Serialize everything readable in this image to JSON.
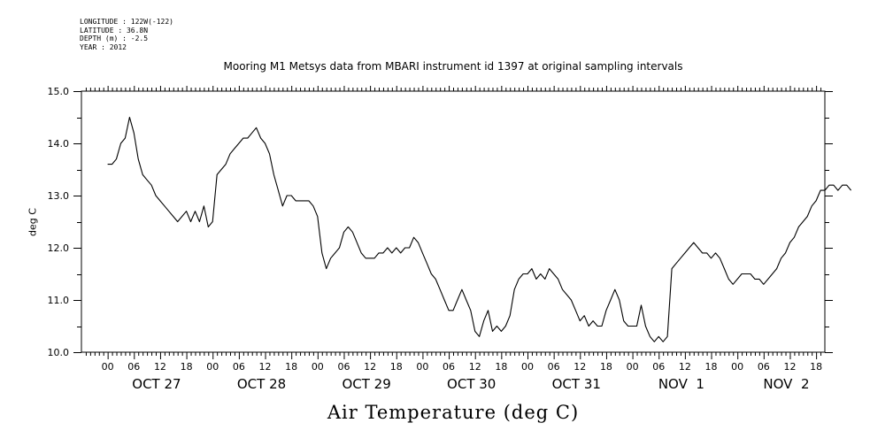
{
  "meta": {
    "longitude": "LONGITUDE : 122W(-122)",
    "latitude": "LATITUDE : 36.8N",
    "depth": "DEPTH (m) : -2.5",
    "year": "YEAR : 2012"
  },
  "chart_data": {
    "type": "line",
    "title": "Mooring M1 Metsys data from MBARI instrument id 1397 at original sampling intervals",
    "xlabel": "Air Temperature (deg C)",
    "ylabel": "deg C",
    "ylim": [
      10.0,
      15.0
    ],
    "yticks": [
      "10.0",
      "11.0",
      "12.0",
      "13.0",
      "14.0",
      "15.0"
    ],
    "x_hour_labels": [
      "00",
      "06",
      "12",
      "18",
      "00",
      "06",
      "12",
      "18",
      "00",
      "06",
      "12",
      "18",
      "00",
      "06",
      "12",
      "18",
      "00",
      "06",
      "12",
      "18",
      "00",
      "06",
      "12",
      "18",
      "00",
      "06",
      "12",
      "18"
    ],
    "day_labels": [
      "OCT 27",
      "OCT 28",
      "OCT 29",
      "OCT 30",
      "OCT 31",
      "NOV  1",
      "NOV  2"
    ],
    "grid": false,
    "series": [
      {
        "x": [
          0,
          1,
          2,
          3,
          4,
          5,
          6,
          7,
          8,
          9,
          10,
          11,
          12,
          13,
          14,
          15,
          16,
          17,
          18,
          19,
          20,
          21,
          22,
          23,
          24,
          25,
          26,
          27,
          28,
          29,
          30,
          31,
          32,
          33,
          34,
          35,
          36,
          37,
          38,
          39,
          40,
          41,
          42,
          43,
          44,
          45,
          46,
          47,
          48,
          49,
          50,
          51,
          52,
          53,
          54,
          55,
          56,
          57,
          58,
          59,
          60,
          61,
          62,
          63,
          64,
          65,
          66,
          67,
          68,
          69,
          70,
          71,
          72,
          73,
          74,
          75,
          76,
          77,
          78,
          79,
          80,
          81,
          82,
          83,
          84,
          85,
          86,
          87,
          88,
          89,
          90,
          91,
          92,
          93,
          94,
          95,
          96,
          97,
          98,
          99,
          100,
          101,
          102,
          103,
          104,
          105,
          106,
          107,
          108,
          109,
          110,
          111,
          112,
          113,
          114,
          115,
          116,
          117,
          118,
          119,
          120,
          121,
          122,
          123,
          124,
          125,
          126,
          127,
          128,
          129,
          130,
          131,
          132,
          133,
          134,
          135,
          136,
          137,
          138,
          139,
          140,
          141,
          142,
          143,
          144,
          145,
          146,
          147,
          148,
          149,
          150,
          151,
          152,
          153,
          154,
          155,
          156,
          157,
          158,
          159,
          160,
          161,
          162,
          163,
          164,
          165,
          166,
          167,
          168,
          169,
          170
        ],
        "y": [
          13.6,
          13.6,
          13.7,
          14.0,
          14.1,
          14.5,
          14.2,
          13.7,
          13.4,
          13.3,
          13.2,
          13.0,
          12.9,
          12.8,
          12.7,
          12.6,
          12.5,
          12.6,
          12.7,
          12.5,
          12.7,
          12.5,
          12.8,
          12.4,
          12.5,
          13.4,
          13.5,
          13.6,
          13.8,
          13.9,
          14.0,
          14.1,
          14.1,
          14.2,
          14.3,
          14.1,
          14.0,
          13.8,
          13.4,
          13.1,
          12.8,
          13.0,
          13.0,
          12.9,
          12.9,
          12.9,
          12.9,
          12.8,
          12.6,
          11.9,
          11.6,
          11.8,
          11.9,
          12.0,
          12.3,
          12.4,
          12.3,
          12.1,
          11.9,
          11.8,
          11.8,
          11.8,
          11.9,
          11.9,
          12.0,
          11.9,
          12.0,
          11.9,
          12.0,
          12.0,
          12.2,
          12.1,
          11.9,
          11.7,
          11.5,
          11.4,
          11.2,
          11.0,
          10.8,
          10.8,
          11.0,
          11.2,
          11.0,
          10.8,
          10.4,
          10.3,
          10.6,
          10.8,
          10.4,
          10.5,
          10.4,
          10.5,
          10.7,
          11.2,
          11.4,
          11.5,
          11.5,
          11.6,
          11.4,
          11.5,
          11.4,
          11.6,
          11.5,
          11.4,
          11.2,
          11.1,
          11.0,
          10.8,
          10.6,
          10.7,
          10.5,
          10.6,
          10.5,
          10.5,
          10.8,
          11.0,
          11.2,
          11.0,
          10.6,
          10.5,
          10.5,
          10.5,
          10.9,
          10.5,
          10.3,
          10.2,
          10.3,
          10.2,
          10.3,
          11.6,
          11.7,
          11.8,
          11.9,
          12.0,
          12.1,
          12.0,
          11.9,
          11.9,
          11.8,
          11.9,
          11.8,
          11.6,
          11.4,
          11.3,
          11.4,
          11.5,
          11.5,
          11.5,
          11.4,
          11.4,
          11.3,
          11.4,
          11.5,
          11.6,
          11.8,
          11.9,
          12.1,
          12.2,
          12.4,
          12.5,
          12.6,
          12.8,
          12.9,
          13.1,
          13.1,
          13.2,
          13.2,
          13.1,
          13.2,
          13.2,
          13.1
        ],
        "x_unit": "hours since OCT 27 00"
      }
    ]
  }
}
